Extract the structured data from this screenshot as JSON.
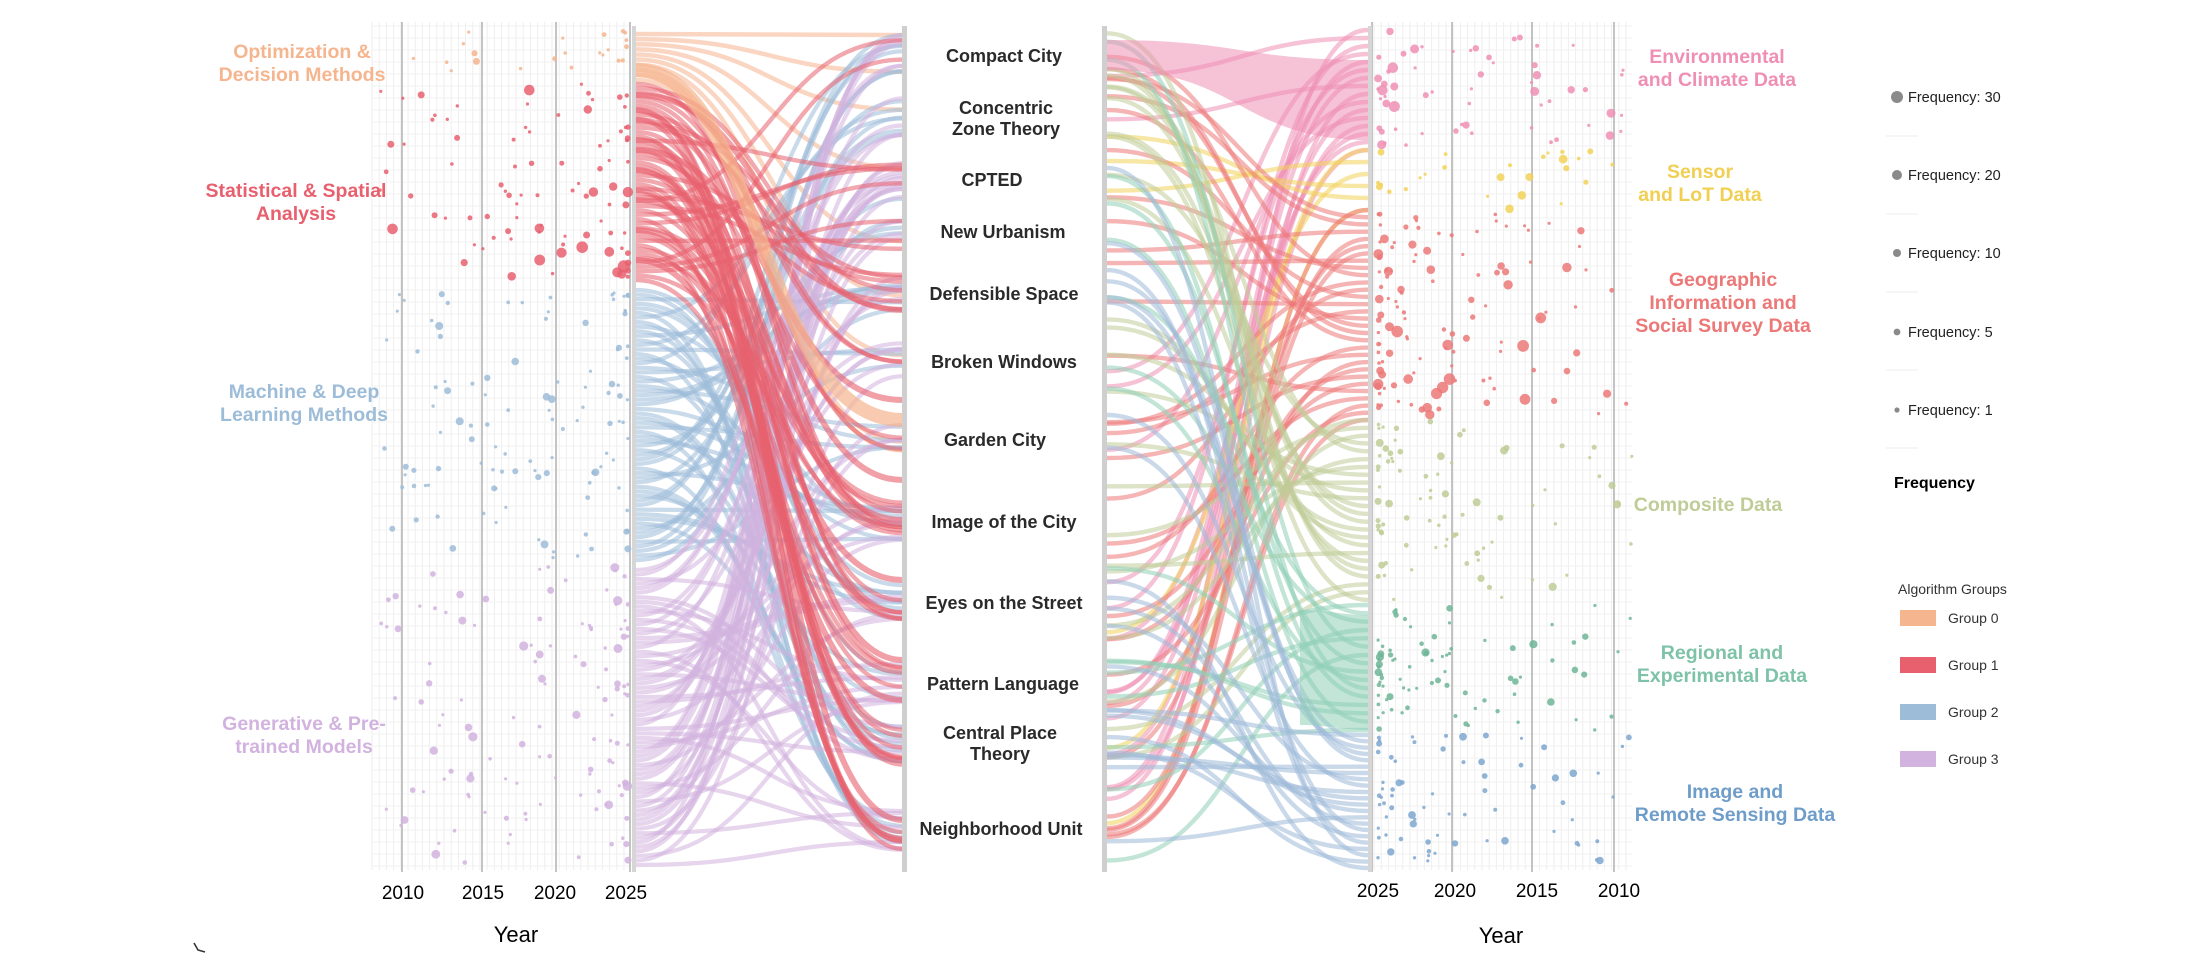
{
  "colors": {
    "group0": "#f5b58f",
    "group1": "#e8606e",
    "group2": "#9dbcd8",
    "group3": "#d2b3df",
    "env": "#ef8fb4",
    "sensor": "#f2d259",
    "geo": "#ec7878",
    "composite": "#bfcc97",
    "regional": "#8fcfb6",
    "image": "#9fbad8"
  },
  "left_panel": {
    "groups": [
      {
        "id": "g0",
        "label": [
          "Optimization &",
          "Decision Methods"
        ],
        "color": "#f5b58f"
      },
      {
        "id": "g1",
        "label": [
          "Statistical & Spatial",
          "Analysis"
        ],
        "color": "#e8606e"
      },
      {
        "id": "g2",
        "label": [
          "Machine &  Deep",
          "Learning Methods"
        ],
        "color": "#9dbcd8"
      },
      {
        "id": "g3",
        "label": [
          "Generative & Pre-",
          "trained Models"
        ],
        "color": "#d2b3df"
      }
    ],
    "x_ticks": [
      "2010",
      "2015",
      "2020",
      "2025"
    ],
    "x_title": "Year"
  },
  "theories": [
    [
      "Compact City"
    ],
    [
      "Concentric",
      "Zone Theory"
    ],
    [
      "CPTED"
    ],
    [
      "New Urbanism"
    ],
    [
      "Defensible Space"
    ],
    [
      "Broken Windows"
    ],
    [
      "Garden City"
    ],
    [
      "Image of the City"
    ],
    [
      "Eyes on the Street"
    ],
    [
      "Pattern Language"
    ],
    [
      "Central Place",
      "Theory"
    ],
    [
      "Neighborhood Unit"
    ]
  ],
  "right_panel": {
    "categories": [
      {
        "id": "env",
        "label": [
          "Environmental",
          "and Climate Data"
        ],
        "color": "#ef8fb4"
      },
      {
        "id": "sensor",
        "label": [
          "Sensor",
          "and LoT Data"
        ],
        "color": "#f2d259"
      },
      {
        "id": "geo",
        "label": [
          "Geographic",
          "Information and",
          "Social Survey Data"
        ],
        "color": "#ec7878"
      },
      {
        "id": "composite",
        "label": [
          "Composite Data"
        ],
        "color": "#bfcc97"
      },
      {
        "id": "regional",
        "label": [
          "Regional and",
          "Experimental Data"
        ],
        "color": "#8fcfb6"
      },
      {
        "id": "image",
        "label": [
          "Image and",
          "Remote Sensing Data"
        ],
        "color": "#7ea7cf"
      }
    ],
    "x_ticks": [
      "2025",
      "2020",
      "2015",
      "2010"
    ],
    "x_title": "Year"
  },
  "frequency_legend": {
    "items": [
      "Frequency: 30",
      "Frequency: 20",
      "Frequency: 10",
      "Frequency: 5",
      "Frequency: 1"
    ],
    "values": [
      30,
      20,
      10,
      5,
      1
    ],
    "title": "Frequency"
  },
  "algorithm_legend": {
    "title": "Algorithm Groups",
    "items": [
      {
        "label": "Group 0",
        "color": "#f5b58f"
      },
      {
        "label": "Group 1",
        "color": "#e8606e"
      },
      {
        "label": "Group 2",
        "color": "#9dbcd8"
      },
      {
        "label": "Group 3",
        "color": "#d2b3df"
      }
    ]
  }
}
